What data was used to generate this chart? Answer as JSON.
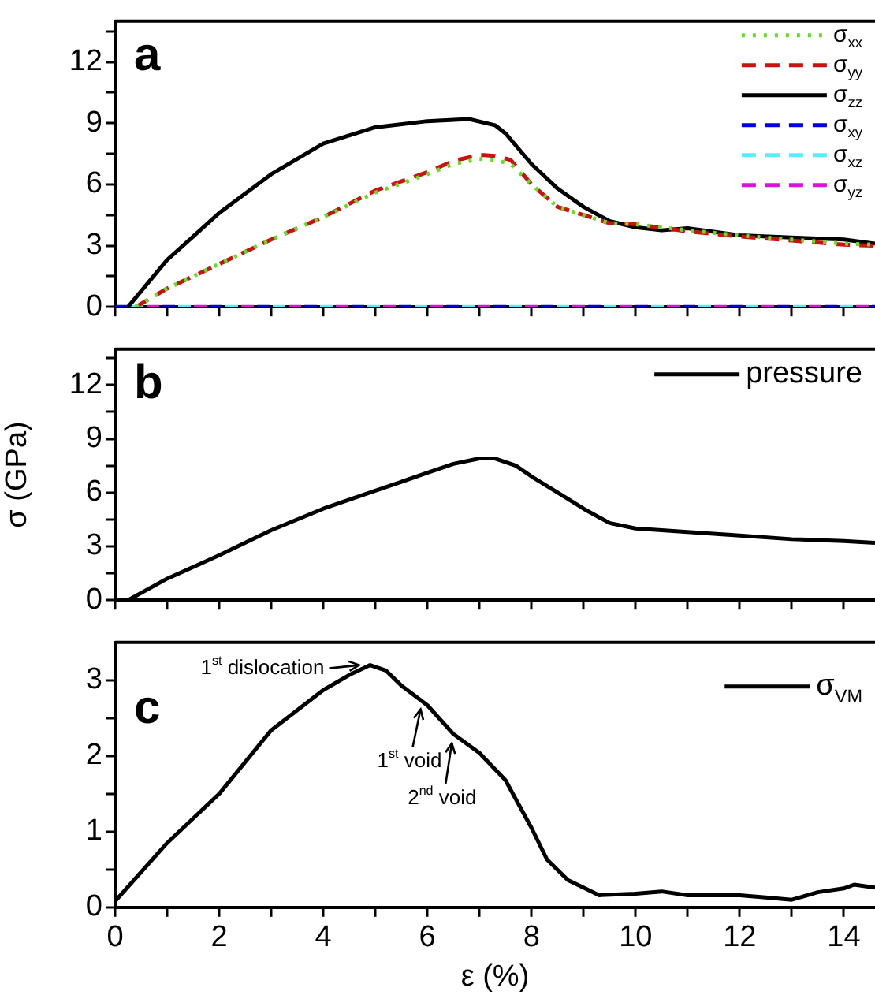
{
  "chart_data": [
    {
      "type": "line",
      "annotations": [
        "a"
      ],
      "xlim": [
        0,
        14.6
      ],
      "xticks": [
        0,
        {
          "value": 1,
          "label": null
        },
        2,
        {
          "value": 3,
          "label": null
        },
        4,
        {
          "value": 5,
          "label": null
        },
        6,
        {
          "value": 7,
          "label": null
        },
        8,
        {
          "value": 9,
          "label": null
        },
        10,
        {
          "value": 11,
          "label": null
        },
        12,
        {
          "value": 13,
          "label": null
        },
        14
      ],
      "ylim": [
        0,
        14
      ],
      "yticks": [
        0,
        {
          "value": 1.5,
          "label": null
        },
        3,
        {
          "value": 4.5,
          "label": null
        },
        6,
        {
          "value": 7.5,
          "label": null
        },
        9,
        {
          "value": 10.5,
          "label": null
        },
        12,
        {
          "value": 13.5,
          "label": null
        }
      ],
      "tick_labels": "y",
      "grid": false,
      "legend": "top right",
      "marker": "none",
      "series": [
        {
          "name": "σ$_{xx}$",
          "color": "#66dd22",
          "line_style": "dotted",
          "x": [
            0.4,
            1,
            2,
            3,
            4,
            5,
            6,
            6.5,
            7,
            7.3,
            7.6,
            8,
            8.5,
            9,
            9.5,
            10,
            11,
            12,
            13,
            14,
            14.6
          ],
          "values": [
            0,
            0.9,
            2.1,
            3.3,
            4.4,
            5.6,
            6.5,
            7.0,
            7.25,
            7.2,
            7.0,
            6.0,
            4.9,
            4.5,
            4.1,
            4.05,
            3.75,
            3.5,
            3.3,
            3.1,
            3.05
          ]
        },
        {
          "name": "σ$_{yy}$",
          "color": "#cc1111",
          "line_style": "dashed",
          "x": [
            0.4,
            1,
            2,
            3,
            4,
            5,
            6,
            6.5,
            7,
            7.3,
            7.6,
            8,
            8.5,
            9,
            9.5,
            10,
            11,
            12,
            13,
            14,
            14.6
          ],
          "values": [
            0,
            0.9,
            2.1,
            3.3,
            4.4,
            5.7,
            6.6,
            7.15,
            7.45,
            7.4,
            7.2,
            6.0,
            4.9,
            4.5,
            4.1,
            4.05,
            3.7,
            3.45,
            3.25,
            3.05,
            3.0
          ]
        },
        {
          "name": "σ$_{zz}$",
          "color": "#000000",
          "line_style": "solid",
          "x": [
            0.25,
            1,
            2,
            3,
            4,
            5,
            6,
            6.8,
            7.3,
            7.5,
            8,
            8.5,
            9,
            9.5,
            10,
            10.5,
            11,
            12,
            13,
            14,
            14.6
          ],
          "values": [
            0,
            2.3,
            4.6,
            6.5,
            8.0,
            8.8,
            9.1,
            9.2,
            8.9,
            8.5,
            7.0,
            5.8,
            4.9,
            4.2,
            3.9,
            3.75,
            3.85,
            3.5,
            3.4,
            3.3,
            3.1
          ]
        },
        {
          "name": "σ$_{xy}$",
          "color": "#0000dd",
          "line_style": "dashed",
          "x": [
            0,
            3,
            6,
            9,
            12,
            14.6
          ],
          "values": [
            0,
            0,
            0,
            0,
            0,
            0
          ]
        },
        {
          "name": "σ$_{xz}$",
          "color": "#55eeff",
          "line_style": "dashed",
          "x": [
            0,
            3,
            6,
            9,
            12,
            14.6
          ],
          "values": [
            0,
            0,
            0,
            0,
            0,
            0
          ]
        },
        {
          "name": "σ$_{yz}$",
          "color": "#dd11dd",
          "line_style": "dashed",
          "x": [
            0,
            3,
            6,
            9,
            12,
            14.6
          ],
          "values": [
            0,
            0,
            0,
            0,
            0,
            0
          ]
        }
      ]
    },
    {
      "type": "line",
      "annotations": [
        "b"
      ],
      "ylabel": "σ (GPa)",
      "xlim": [
        0,
        14.6
      ],
      "xticks": [
        0,
        {
          "value": 1,
          "label": null
        },
        2,
        {
          "value": 3,
          "label": null
        },
        4,
        {
          "value": 5,
          "label": null
        },
        6,
        {
          "value": 7,
          "label": null
        },
        8,
        {
          "value": 9,
          "label": null
        },
        10,
        {
          "value": 11,
          "label": null
        },
        12,
        {
          "value": 13,
          "label": null
        },
        14
      ],
      "ylim": [
        0,
        14
      ],
      "yticks": [
        0,
        {
          "value": 1.5,
          "label": null
        },
        3,
        {
          "value": 4.5,
          "label": null
        },
        6,
        {
          "value": 7.5,
          "label": null
        },
        9,
        {
          "value": 10.5,
          "label": null
        },
        12,
        {
          "value": 13.5,
          "label": null
        }
      ],
      "tick_labels": "y",
      "grid": false,
      "legend": "top right",
      "marker": "none",
      "series": [
        {
          "name": "pressure",
          "color": "#000000",
          "line_style": "solid",
          "x": [
            0.25,
            1,
            2,
            3,
            4,
            5,
            6,
            6.5,
            7,
            7.3,
            7.7,
            8,
            8.5,
            9,
            9.5,
            10,
            10.5,
            11,
            12,
            13,
            14,
            14.6
          ],
          "values": [
            0,
            1.2,
            2.5,
            3.9,
            5.1,
            6.1,
            7.1,
            7.6,
            7.9,
            7.9,
            7.5,
            6.9,
            6.0,
            5.1,
            4.3,
            4.0,
            3.9,
            3.8,
            3.6,
            3.4,
            3.3,
            3.2
          ]
        }
      ]
    },
    {
      "type": "line",
      "xlabel": "ε (%)",
      "annotations": [
        "c",
        {
          "text": "1$^{st}$ dislocation",
          "x": 4.9,
          "y": 3.2
        },
        {
          "text": "1$^{st}$ void",
          "x": 5.9,
          "y": 2.7
        },
        {
          "text": "2$^{nd}$ void",
          "x": 6.5,
          "y": 2.25
        }
      ],
      "xlim": [
        0,
        14.6
      ],
      "xticks": [
        0,
        {
          "value": 1,
          "label": null
        },
        2,
        {
          "value": 3,
          "label": null
        },
        4,
        {
          "value": 5,
          "label": null
        },
        6,
        {
          "value": 7,
          "label": null
        },
        8,
        {
          "value": 9,
          "label": null
        },
        10,
        {
          "value": 11,
          "label": null
        },
        12,
        {
          "value": 13,
          "label": null
        },
        14
      ],
      "ylim": [
        0,
        3.5
      ],
      "yticks": [
        0,
        {
          "value": 0.5,
          "label": null
        },
        1,
        {
          "value": 1.5,
          "label": null
        },
        2,
        {
          "value": 2.5,
          "label": null
        },
        3
      ],
      "grid": false,
      "legend": "top right",
      "marker": "none",
      "series": [
        {
          "name": "σ$_{VM}$",
          "color": "#000000",
          "line_style": "solid",
          "x": [
            0,
            1,
            2,
            3,
            4,
            4.5,
            4.9,
            5.2,
            5.5,
            6,
            6.5,
            7,
            7.5,
            8,
            8.3,
            8.7,
            9,
            9.3,
            10,
            10.5,
            11,
            12,
            12.5,
            13,
            13.5,
            14,
            14.2,
            14.6
          ],
          "values": [
            0.08,
            0.85,
            1.5,
            2.34,
            2.87,
            3.07,
            3.2,
            3.13,
            2.93,
            2.67,
            2.29,
            2.04,
            1.68,
            1.05,
            0.63,
            0.36,
            0.26,
            0.16,
            0.18,
            0.21,
            0.16,
            0.16,
            0.13,
            0.1,
            0.2,
            0.25,
            0.3,
            0.26
          ]
        }
      ]
    }
  ]
}
